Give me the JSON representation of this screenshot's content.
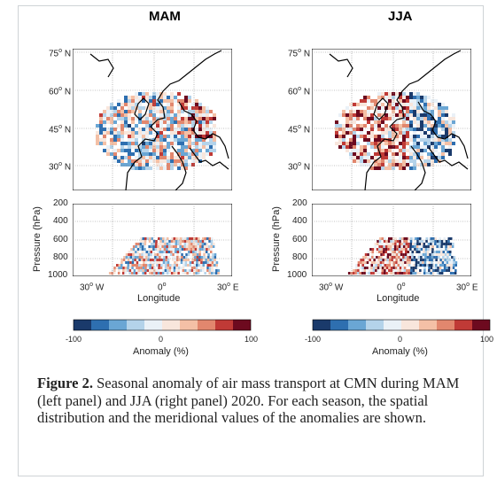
{
  "panels": [
    {
      "key": "mam",
      "title": "MAM"
    },
    {
      "key": "jja",
      "title": "JJA"
    }
  ],
  "map_lat_ticks": [
    {
      "deg": "75",
      "hem": "N"
    },
    {
      "deg": "60",
      "hem": "N"
    },
    {
      "deg": "45",
      "hem": "N"
    },
    {
      "deg": "30",
      "hem": "N"
    }
  ],
  "lon_ticks": [
    {
      "deg": "30",
      "hem": "W"
    },
    {
      "deg": "0",
      "hem": ""
    },
    {
      "deg": "30",
      "hem": "E"
    }
  ],
  "pressure_ticks": [
    "200",
    "400",
    "600",
    "800",
    "1000"
  ],
  "pressure_label": "Pressure (hPa)",
  "longitude_label": "Longitude",
  "colorbar": {
    "colors": [
      "#1a3a6b",
      "#2e6fb0",
      "#6aa6d4",
      "#b4d3ea",
      "#eaf1f7",
      "#f8e6dc",
      "#f4c0a6",
      "#e2876e",
      "#c03a36",
      "#6d0a1f"
    ],
    "tick_labels": [
      "-100",
      "0",
      "100"
    ],
    "label": "Anomaly (%)"
  },
  "caption": {
    "figure_label": "Figure 2.",
    "text": " Seasonal anomaly of air mass transport at CMN during MAM (left panel) and JJA (right panel) 2020. For each season, the spatial distribution and the meridional values of the anomalies are shown."
  }
}
